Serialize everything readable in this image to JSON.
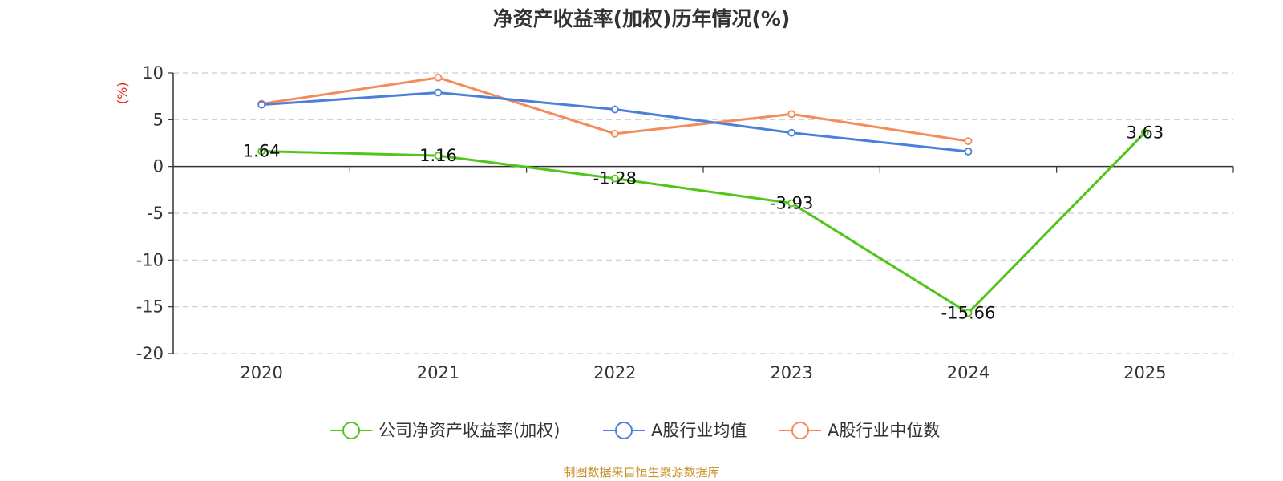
{
  "chart_data": {
    "type": "line",
    "title": "净资产收益率(加权)历年情况(%)",
    "ylabel": "(%)",
    "xlabel": "",
    "categories": [
      "2020",
      "2021",
      "2022",
      "2023",
      "2024",
      "2025"
    ],
    "ylim": [
      -20,
      10
    ],
    "yticks": [
      10,
      5,
      0,
      -5,
      -10,
      -15,
      -20
    ],
    "grid": true,
    "legend_position": "bottom",
    "series": [
      {
        "name": "公司净资产收益率(加权)",
        "color": "#52c41a",
        "values": [
          1.64,
          1.16,
          -1.28,
          -3.93,
          -15.66,
          3.63
        ],
        "labels": [
          "1.64",
          "1.16",
          "-1.28",
          "-3.93",
          "-15.66",
          "3.63"
        ]
      },
      {
        "name": "A股行业均值",
        "color": "#4a7fdc",
        "values": [
          6.6,
          7.9,
          6.1,
          3.6,
          1.6,
          null
        ]
      },
      {
        "name": "A股行业中位数",
        "color": "#f58a5a",
        "values": [
          6.7,
          9.5,
          3.5,
          5.6,
          2.7,
          null
        ]
      }
    ]
  },
  "source": "制图数据来自恒生聚源数据库"
}
